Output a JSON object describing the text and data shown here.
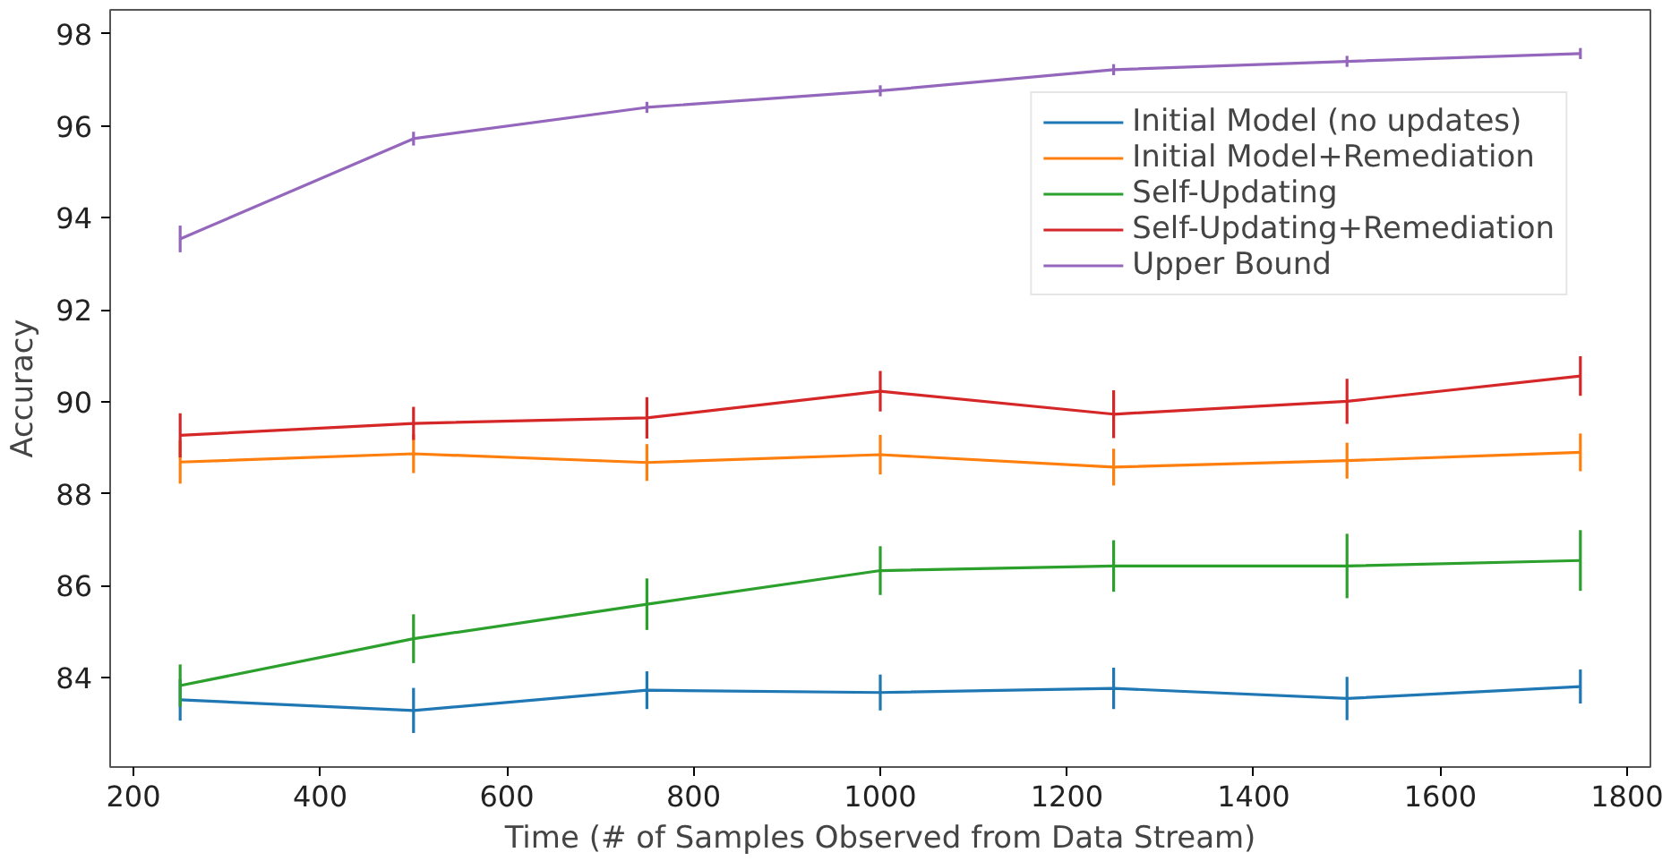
{
  "chart_data": {
    "type": "line",
    "xlabel": "Time (# of Samples Observed from Data Stream)",
    "ylabel": "Accuracy",
    "x": [
      250,
      500,
      750,
      1000,
      1250,
      1500,
      1750
    ],
    "xlim": [
      175,
      1825
    ],
    "xticks": [
      200,
      400,
      600,
      800,
      1000,
      1200,
      1400,
      1600,
      1800
    ],
    "ylim": [
      82.06,
      98.52
    ],
    "yticks": [
      84,
      86,
      88,
      90,
      92,
      94,
      96,
      98
    ],
    "grid": false,
    "legend": "top right",
    "marker": "none",
    "line_style": "solid",
    "series": [
      {
        "name": "Initial Model (no updates)",
        "color": "#1f77b4",
        "values": [
          83.52,
          83.29,
          83.73,
          83.68,
          83.77,
          83.55,
          83.81
        ],
        "errors": [
          0.45,
          0.49,
          0.41,
          0.39,
          0.45,
          0.47,
          0.37
        ]
      },
      {
        "name": "Initial Model+Remediation",
        "color": "#ff7f0e",
        "values": [
          88.69,
          88.87,
          88.68,
          88.85,
          88.58,
          88.72,
          88.9
        ],
        "errors": [
          0.47,
          0.42,
          0.4,
          0.43,
          0.4,
          0.39,
          0.41
        ]
      },
      {
        "name": "Self-Updating",
        "color": "#2ca02c",
        "values": [
          83.83,
          84.85,
          85.6,
          86.33,
          86.43,
          86.43,
          86.55
        ],
        "errors": [
          0.46,
          0.53,
          0.56,
          0.53,
          0.56,
          0.7,
          0.66
        ]
      },
      {
        "name": "Self-Updating+Remediation",
        "color": "#d62728",
        "values": [
          89.27,
          89.53,
          89.65,
          90.23,
          89.73,
          90.01,
          90.56
        ],
        "errors": [
          0.48,
          0.36,
          0.45,
          0.44,
          0.52,
          0.49,
          0.43
        ]
      },
      {
        "name": "Upper Bound",
        "color": "#9467bd",
        "values": [
          93.54,
          95.72,
          96.4,
          96.76,
          97.22,
          97.4,
          97.57
        ],
        "errors": [
          0.29,
          0.15,
          0.12,
          0.12,
          0.12,
          0.12,
          0.12
        ]
      }
    ]
  }
}
